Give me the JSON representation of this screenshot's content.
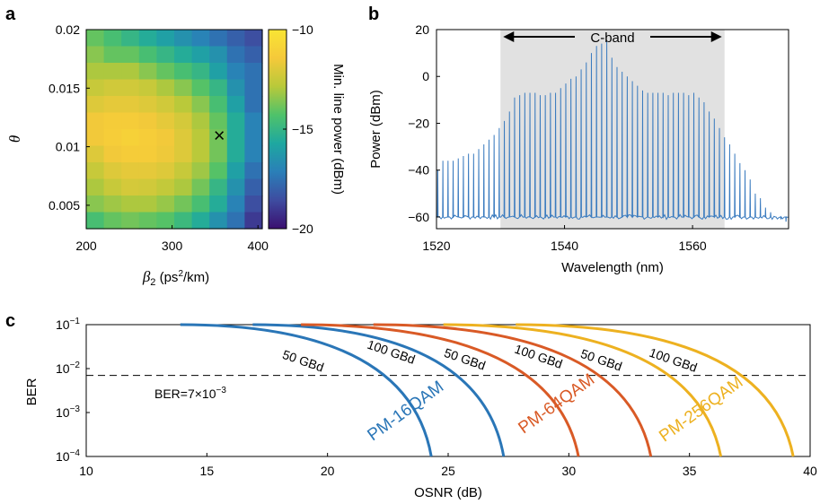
{
  "figure": {
    "panel_a_letter": "a",
    "panel_b_letter": "b",
    "panel_c_letter": "c"
  },
  "chart_data": [
    {
      "type": "heatmap",
      "panel": "a",
      "xlabel_main": "β",
      "xlabel_sub": "2",
      "xlabel_unit_a": " (ps",
      "xlabel_unit_sup": "2",
      "xlabel_unit_b": "/km)",
      "ylabel": "θ",
      "x_ticks": [
        "200",
        "300",
        "400"
      ],
      "y_ticks": [
        "0.005",
        "0.01",
        "0.015",
        "0.02"
      ],
      "xlim": [
        200,
        405
      ],
      "ylim": [
        0.003,
        0.02
      ],
      "colorbar_label": "Min. line power (dBm)",
      "colorbar_ticks": [
        "−10",
        "−15",
        "−20"
      ],
      "colorbar_range": [
        -20,
        -10
      ],
      "colormap": [
        "#3b0f70",
        "#3e4ca0",
        "#2a7fb8",
        "#1ea8a0",
        "#4fc26a",
        "#b8c93a",
        "#f5c93a",
        "#f9e534"
      ],
      "marker": {
        "symbol": "×",
        "x": 355,
        "y": 0.011
      },
      "grid": [
        [
          -14.0,
          -14.5,
          -15.0,
          -15.5,
          -16.0,
          -16.5,
          -17.0,
          -17.5,
          -18.0,
          -18.5
        ],
        [
          -13.5,
          -14.0,
          -14.0,
          -14.5,
          -15.0,
          -15.5,
          -16.0,
          -16.5,
          -17.5,
          -18.0
        ],
        [
          -13.0,
          -13.0,
          -13.0,
          -13.5,
          -14.0,
          -14.5,
          -15.0,
          -16.0,
          -17.0,
          -17.5
        ],
        [
          -12.5,
          -12.3,
          -12.3,
          -12.5,
          -13.0,
          -13.5,
          -14.2,
          -15.0,
          -16.5,
          -17.5
        ],
        [
          -12.0,
          -11.8,
          -11.8,
          -12.0,
          -12.3,
          -12.8,
          -13.5,
          -14.5,
          -16.0,
          -17.5
        ],
        [
          -11.5,
          -11.3,
          -11.3,
          -11.5,
          -11.8,
          -12.2,
          -13.0,
          -14.0,
          -15.5,
          -17.0
        ],
        [
          -11.5,
          -11.2,
          -11.0,
          -11.2,
          -11.5,
          -12.0,
          -12.8,
          -13.8,
          -15.5,
          -17.0
        ],
        [
          -12.0,
          -11.5,
          -11.3,
          -11.3,
          -11.6,
          -12.0,
          -12.8,
          -13.8,
          -15.5,
          -17.0
        ],
        [
          -12.5,
          -12.0,
          -11.8,
          -11.8,
          -12.0,
          -12.5,
          -13.2,
          -14.2,
          -16.0,
          -17.5
        ],
        [
          -13.0,
          -12.5,
          -12.2,
          -12.3,
          -12.6,
          -13.0,
          -13.8,
          -15.0,
          -16.5,
          -18.0
        ],
        [
          -13.5,
          -13.2,
          -13.0,
          -13.0,
          -13.3,
          -13.8,
          -14.5,
          -15.5,
          -17.0,
          -18.5
        ],
        [
          -14.5,
          -14.0,
          -13.8,
          -14.0,
          -14.2,
          -14.8,
          -15.5,
          -16.5,
          -17.5,
          -19.0
        ]
      ]
    },
    {
      "type": "line",
      "panel": "b",
      "xlabel": "Wavelength (nm)",
      "ylabel": "Power (dBm)",
      "xlim": [
        1520,
        1575
      ],
      "ylim": [
        -65,
        20
      ],
      "x_ticks": [
        "1520",
        "1540",
        "1560"
      ],
      "y_ticks": [
        "20",
        "0",
        "−20",
        "−40",
        "−60"
      ],
      "shaded_band": {
        "label": "C-band",
        "x_from": 1530,
        "x_to": 1565
      },
      "line_color": "#3a7bbf",
      "noise_floor_dbm": -60,
      "comb": {
        "x_start": 1520.2,
        "spacing": 0.8,
        "peaks": [
          -40,
          -36,
          -36,
          -36,
          -35,
          -34,
          -33,
          -33,
          -31,
          -29,
          -27,
          -25,
          -22,
          -19,
          -15,
          -9,
          -8,
          -7,
          -7,
          -7,
          -8,
          -8,
          -7,
          -7,
          -5,
          -3,
          -1,
          0,
          3,
          6,
          10,
          13,
          14,
          15,
          8,
          4,
          2,
          0,
          -2,
          -4,
          -6,
          -7,
          -7,
          -7,
          -7,
          -8,
          -7,
          -7,
          -7,
          -8,
          -7,
          -9,
          -11,
          -15,
          -18,
          -22,
          -26,
          -29,
          -33,
          -37,
          -40,
          -44,
          -50,
          -52,
          -56,
          -58,
          -60,
          -61,
          -62
        ]
      }
    },
    {
      "type": "line",
      "panel": "c",
      "xlabel": "OSNR (dB)",
      "ylabel": "BER",
      "xlim": [
        10,
        40
      ],
      "ylim": [
        0.0001,
        0.1
      ],
      "y_scale": "log",
      "x_ticks": [
        "10",
        "15",
        "20",
        "25",
        "30",
        "35",
        "40"
      ],
      "y_tick_base": "10",
      "y_tick_exps": [
        "−1",
        "−2",
        "−3",
        "−4"
      ],
      "threshold": {
        "label_pre": "BER=7×10",
        "label_exp": "−3",
        "value": 0.007
      },
      "series": [
        {
          "name": "PM-16QAM",
          "color": "#2a76b7",
          "osnr": [
            13.9,
            24.3
          ]
        },
        {
          "name": "PM-16QAM",
          "color": "#2a76b7",
          "osnr": [
            16.9,
            27.3
          ]
        },
        {
          "name": "PM-64QAM",
          "color": "#d95a26",
          "osnr": [
            18.9,
            30.4
          ]
        },
        {
          "name": "PM-64QAM",
          "color": "#d95a26",
          "osnr": [
            21.9,
            33.4
          ]
        },
        {
          "name": "PM-256QAM",
          "color": "#edb120",
          "osnr": [
            24.8,
            36.3
          ]
        },
        {
          "name": "PM-256QAM",
          "color": "#edb120",
          "osnr": [
            27.8,
            39.3
          ]
        }
      ],
      "rate_labels": [
        "50 GBd",
        "100 GBd",
        "50 GBd",
        "100 GBd",
        "50 GBd",
        "100 GBd"
      ],
      "format_labels": [
        "PM-16QAM",
        "PM-64QAM",
        "PM-256QAM"
      ]
    }
  ]
}
